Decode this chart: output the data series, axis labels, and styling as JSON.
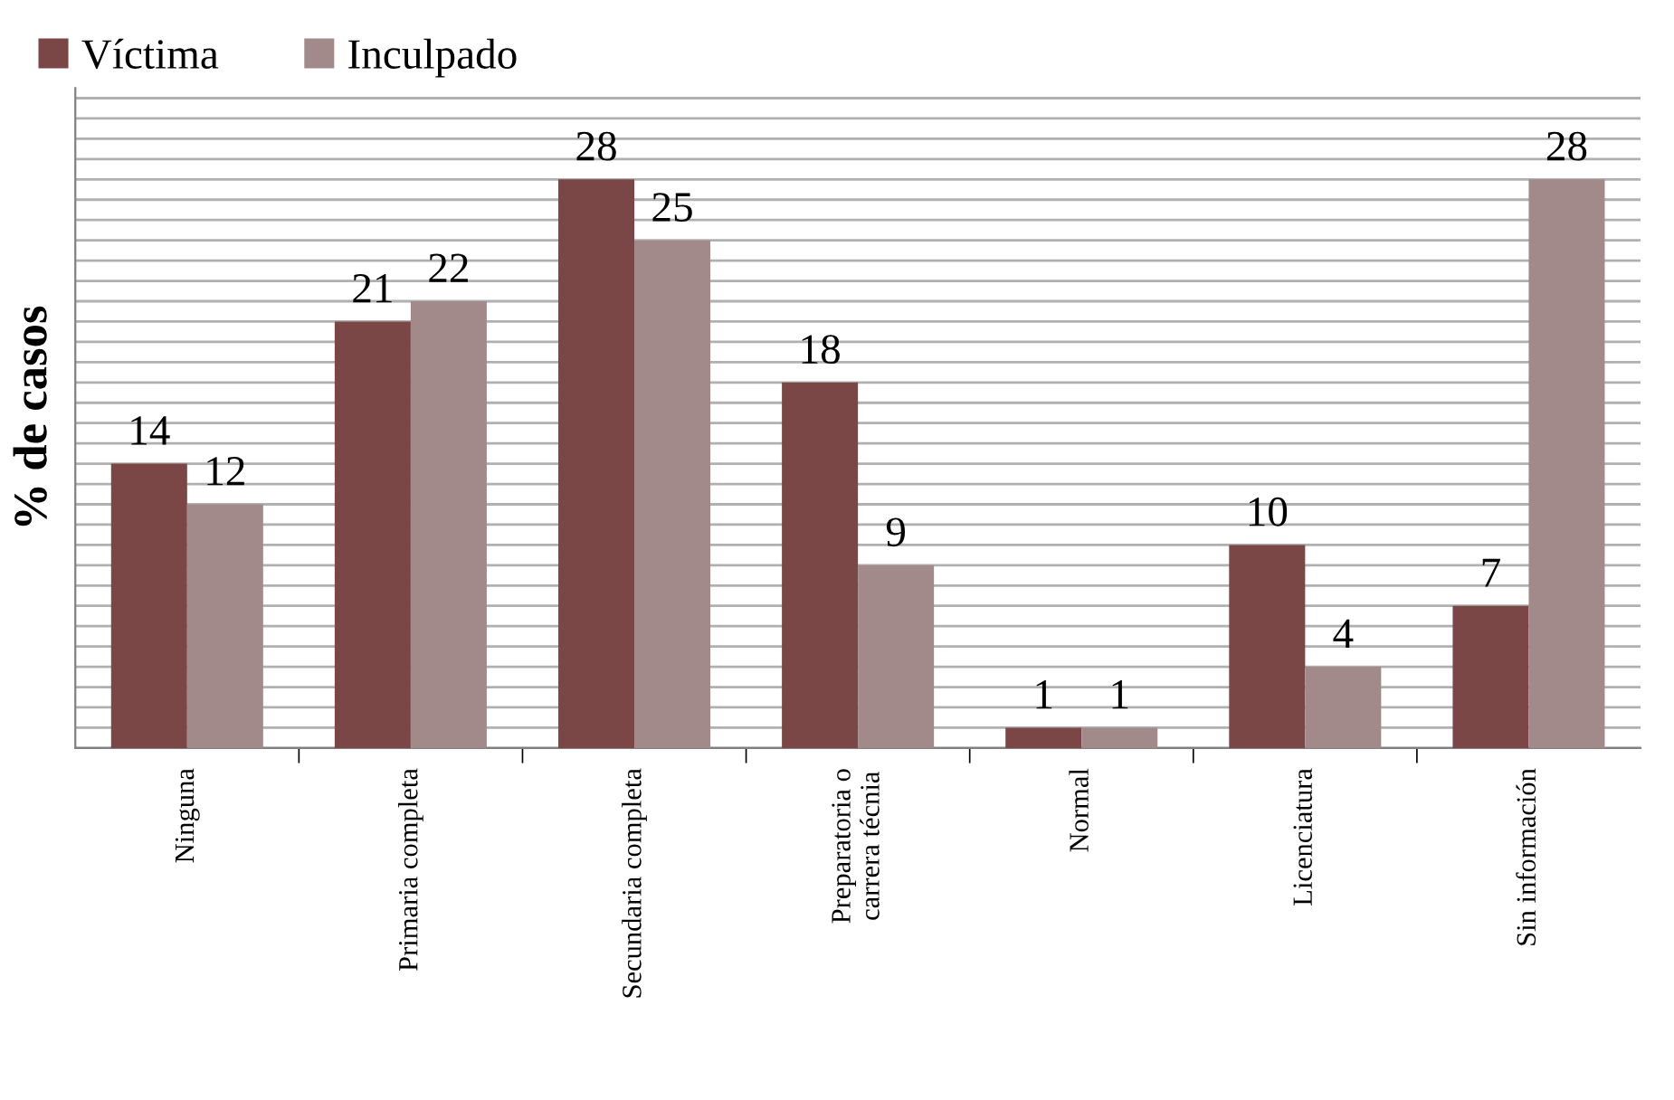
{
  "chart_data": {
    "type": "bar",
    "ylabel": "% de casos",
    "categories": [
      "Ninguna",
      "Primaria completa",
      "Secundaria completa",
      "Preparatoria o\ncarrera técnia",
      "Normal",
      "Licenciatura",
      "Sin información"
    ],
    "series": [
      {
        "name": "Víctima",
        "color": "#7a4646",
        "values": [
          14,
          21,
          28,
          18,
          1,
          10,
          7
        ]
      },
      {
        "name": "Inculpado",
        "color": "#a38a8a",
        "values": [
          12,
          22,
          25,
          9,
          1,
          4,
          28
        ]
      }
    ],
    "data_labels": true,
    "ylim": [
      0,
      32.5
    ],
    "yticks": [
      {
        "value": 0,
        "label": null
      },
      {
        "value": 1,
        "label": null
      },
      {
        "value": 2,
        "label": null
      },
      {
        "value": 3,
        "label": null
      },
      {
        "value": 4,
        "label": null
      },
      {
        "value": 5,
        "label": null
      },
      {
        "value": 6,
        "label": null
      },
      {
        "value": 7,
        "label": null
      },
      {
        "value": 8,
        "label": null
      },
      {
        "value": 9,
        "label": null
      },
      {
        "value": 10,
        "label": null
      },
      {
        "value": 11,
        "label": null
      },
      {
        "value": 12,
        "label": null
      },
      {
        "value": 13,
        "label": null
      },
      {
        "value": 14,
        "label": null
      },
      {
        "value": 15,
        "label": null
      },
      {
        "value": 16,
        "label": null
      },
      {
        "value": 17,
        "label": null
      },
      {
        "value": 18,
        "label": null
      },
      {
        "value": 19,
        "label": null
      },
      {
        "value": 20,
        "label": null
      },
      {
        "value": 21,
        "label": null
      },
      {
        "value": 22,
        "label": null
      },
      {
        "value": 23,
        "label": null
      },
      {
        "value": 24,
        "label": null
      },
      {
        "value": 25,
        "label": null
      },
      {
        "value": 26,
        "label": null
      },
      {
        "value": 27,
        "label": null
      },
      {
        "value": 28,
        "label": null
      },
      {
        "value": 29,
        "label": null
      },
      {
        "value": 30,
        "label": null
      },
      {
        "value": 31,
        "label": null
      },
      {
        "value": 32,
        "label": null
      }
    ],
    "tick_labels": "x",
    "grid": "y",
    "legend": "top left"
  }
}
